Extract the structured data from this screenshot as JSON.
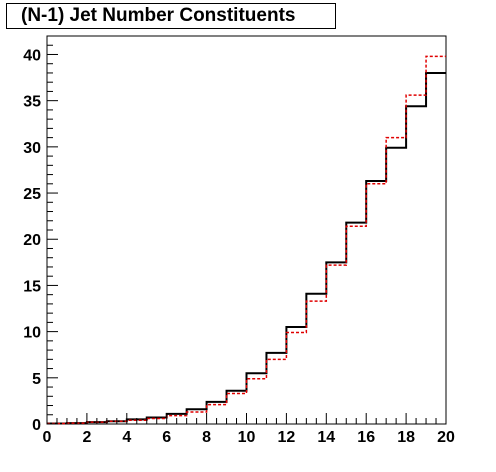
{
  "chart_data": {
    "type": "line",
    "title": "(N-1) Jet Number Constituents",
    "xlabel": "",
    "ylabel": "",
    "xlim": [
      0,
      20
    ],
    "ylim": [
      0,
      42
    ],
    "x_ticks": [
      0,
      2,
      4,
      6,
      8,
      10,
      12,
      14,
      16,
      18,
      20
    ],
    "y_ticks": [
      0,
      5,
      10,
      15,
      20,
      25,
      30,
      35,
      40
    ],
    "bin_edges": [
      0,
      1,
      2,
      3,
      4,
      5,
      6,
      7,
      8,
      9,
      10,
      11,
      12,
      13,
      14,
      15,
      16,
      17,
      18,
      19,
      20
    ],
    "grid": false,
    "series": [
      {
        "style": "solid",
        "color": "#000000",
        "values": [
          0.05,
          0.1,
          0.2,
          0.3,
          0.5,
          0.7,
          1.1,
          1.6,
          2.4,
          3.6,
          5.5,
          7.7,
          10.5,
          14.1,
          17.5,
          21.8,
          26.3,
          29.9,
          34.4,
          38.0
        ]
      },
      {
        "style": "dashed",
        "color": "#e00000",
        "values": [
          0.05,
          0.1,
          0.2,
          0.3,
          0.4,
          0.6,
          0.9,
          1.3,
          2.1,
          3.3,
          4.9,
          7.0,
          9.9,
          13.3,
          17.2,
          21.4,
          26.0,
          31.0,
          35.6,
          39.8
        ]
      }
    ]
  }
}
